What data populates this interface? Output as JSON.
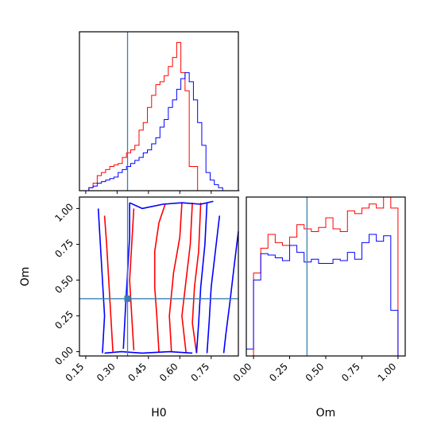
{
  "chart_data": {
    "type": "corner",
    "parameters": [
      "H0",
      "Om"
    ],
    "truth": {
      "H0": 0.35,
      "Om": 0.37,
      "color": "#3a7fb2"
    },
    "series": [
      {
        "color": "#ff0000"
      },
      {
        "color": "#0000ff"
      }
    ],
    "panels": [
      {
        "id": "H0-hist",
        "type": "histogram",
        "xlim": [
          0.12,
          0.88
        ],
        "ylim": [
          0,
          1.05
        ],
        "bin_edges": [
          0.125,
          0.145,
          0.165,
          0.185,
          0.205,
          0.225,
          0.245,
          0.265,
          0.285,
          0.305,
          0.325,
          0.345,
          0.365,
          0.385,
          0.405,
          0.425,
          0.445,
          0.465,
          0.485,
          0.505,
          0.525,
          0.545,
          0.565,
          0.585,
          0.605,
          0.625,
          0.645,
          0.665,
          0.685,
          0.705,
          0.725,
          0.745,
          0.765,
          0.785,
          0.805,
          0.825,
          0.845,
          0.865,
          0.885
        ],
        "series_values": [
          [
            0,
            0,
            0.02,
            0.05,
            0.1,
            0.12,
            0.14,
            0.16,
            0.17,
            0.18,
            0.22,
            0.25,
            0.27,
            0.3,
            0.4,
            0.45,
            0.55,
            0.63,
            0.7,
            0.72,
            0.76,
            0.82,
            0.88,
            0.98,
            0.78,
            0.66,
            0.16,
            0.16,
            0.0,
            0.0,
            0.0,
            0.0,
            0.0,
            0.0,
            0.0,
            0.0,
            0.0,
            0.0
          ],
          [
            0,
            0,
            0.02,
            0.03,
            0.05,
            0.06,
            0.07,
            0.08,
            0.09,
            0.12,
            0.14,
            0.16,
            0.18,
            0.2,
            0.22,
            0.25,
            0.27,
            0.31,
            0.35,
            0.42,
            0.47,
            0.55,
            0.6,
            0.67,
            0.74,
            0.78,
            0.72,
            0.6,
            0.45,
            0.3,
            0.12,
            0.07,
            0.04,
            0.02,
            0.0,
            0.0,
            0.0,
            0.0
          ]
        ]
      },
      {
        "id": "H0-Om-contour",
        "type": "contour",
        "xlim": [
          0.12,
          0.88
        ],
        "ylim": [
          -0.03,
          1.08
        ],
        "xticks": [
          "0.15",
          "0.30",
          "0.45",
          "0.60",
          "0.75"
        ],
        "yticks": [
          "0.00",
          "0.25",
          "0.50",
          "0.75",
          "1.00"
        ],
        "xlabel": "H0",
        "ylabel": "Om",
        "truth_point": [
          0.35,
          0.37
        ],
        "series_contours": [
          [
            [
              [
                0.68,
                -0.01
              ],
              [
                0.66,
                0.2
              ],
              [
                0.67,
                0.45
              ],
              [
                0.69,
                0.7
              ],
              [
                0.7,
                1.04
              ]
            ],
            [
              [
                0.63,
                -0.01
              ],
              [
                0.61,
                0.25
              ],
              [
                0.63,
                0.5
              ],
              [
                0.65,
                0.75
              ],
              [
                0.66,
                1.04
              ]
            ],
            [
              [
                0.56,
                0.0
              ],
              [
                0.55,
                0.25
              ],
              [
                0.57,
                0.55
              ],
              [
                0.6,
                0.8
              ],
              [
                0.61,
                1.04
              ]
            ],
            [
              [
                0.5,
                0.0
              ],
              [
                0.49,
                0.25
              ],
              [
                0.48,
                0.45
              ],
              [
                0.48,
                0.7
              ],
              [
                0.5,
                0.9
              ],
              [
                0.53,
                1.03
              ]
            ],
            [
              [
                0.38,
                0.01
              ],
              [
                0.37,
                0.25
              ],
              [
                0.36,
                0.5
              ],
              [
                0.37,
                0.75
              ],
              [
                0.38,
                1.0
              ]
            ],
            [
              [
                0.28,
                0.0
              ],
              [
                0.27,
                0.25
              ],
              [
                0.26,
                0.5
              ],
              [
                0.25,
                0.75
              ],
              [
                0.24,
                0.95
              ]
            ]
          ],
          [
            [
              [
                0.88,
                0.84
              ],
              [
                0.86,
                0.6
              ],
              [
                0.84,
                0.35
              ],
              [
                0.82,
                0.12
              ],
              [
                0.81,
                -0.01
              ]
            ],
            [
              [
                0.79,
                0.95
              ],
              [
                0.77,
                0.7
              ],
              [
                0.75,
                0.45
              ],
              [
                0.74,
                0.2
              ],
              [
                0.73,
                -0.01
              ]
            ],
            [
              [
                0.73,
                1.04
              ],
              [
                0.72,
                0.75
              ],
              [
                0.7,
                0.45
              ],
              [
                0.69,
                0.2
              ],
              [
                0.68,
                -0.01
              ]
            ],
            [
              [
                0.36,
                1.04
              ],
              [
                0.42,
                1.0
              ],
              [
                0.52,
                1.03
              ],
              [
                0.61,
                1.04
              ],
              [
                0.7,
                1.03
              ],
              [
                0.76,
                1.05
              ]
            ],
            [
              [
                0.36,
                1.04
              ],
              [
                0.36,
                0.8
              ],
              [
                0.35,
                0.55
              ],
              [
                0.34,
                0.3
              ],
              [
                0.33,
                0.02
              ]
            ],
            [
              [
                0.21,
                1.0
              ],
              [
                0.22,
                0.75
              ],
              [
                0.23,
                0.5
              ],
              [
                0.24,
                0.25
              ],
              [
                0.23,
                -0.01
              ]
            ],
            [
              [
                0.24,
                -0.01
              ],
              [
                0.32,
                0.0
              ],
              [
                0.42,
                -0.01
              ],
              [
                0.55,
                0.0
              ],
              [
                0.66,
                -0.01
              ]
            ]
          ]
        ]
      },
      {
        "id": "Om-hist",
        "type": "histogram",
        "xlim": [
          -0.05,
          1.05
        ],
        "ylim": [
          0,
          1.15
        ],
        "xticks": [
          "0.00",
          "0.25",
          "0.50",
          "0.75",
          "1.00"
        ],
        "xlabel": "Om",
        "bin_edges": [
          -0.05,
          0.0,
          0.05,
          0.1,
          0.15,
          0.2,
          0.25,
          0.3,
          0.35,
          0.4,
          0.45,
          0.5,
          0.55,
          0.6,
          0.65,
          0.7,
          0.75,
          0.8,
          0.85,
          0.9,
          0.95,
          1.0,
          1.05
        ],
        "series_values": [
          [
            0.0,
            0.6,
            0.78,
            0.88,
            0.82,
            0.8,
            0.86,
            0.95,
            0.92,
            0.9,
            0.93,
            1.0,
            0.92,
            0.9,
            1.05,
            1.03,
            1.07,
            1.1,
            1.07,
            1.15,
            1.07,
            0.0
          ],
          [
            0.05,
            0.55,
            0.74,
            0.73,
            0.71,
            0.69,
            0.8,
            0.75,
            0.68,
            0.7,
            0.67,
            0.67,
            0.7,
            0.69,
            0.75,
            0.7,
            0.82,
            0.88,
            0.83,
            0.87,
            0.33,
            0.0
          ]
        ]
      }
    ]
  }
}
